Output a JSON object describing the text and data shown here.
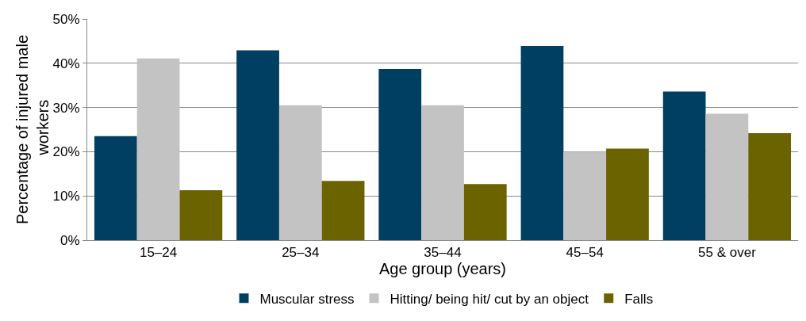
{
  "chart_data": {
    "type": "bar",
    "xlabel": "Age group (years)",
    "ylabel": "Percentage of injured male workers",
    "categories": [
      "15–24",
      "25–34",
      "35–44",
      "45–54",
      "55 & over"
    ],
    "series": [
      {
        "name": "Muscular stress",
        "color": "#003f62",
        "values": [
          23.5,
          42.9,
          38.7,
          43.9,
          33.6
        ]
      },
      {
        "name": "Hitting/ being hit/ cut by an object",
        "color": "#c3c3c3",
        "values": [
          41.1,
          30.5,
          30.5,
          20.0,
          28.6
        ]
      },
      {
        "name": "Falls",
        "color": "#6b6200",
        "values": [
          11.3,
          13.4,
          12.7,
          20.7,
          24.2
        ]
      }
    ],
    "ylim": [
      0,
      50
    ],
    "yticks": [
      {
        "value": 0,
        "label": "0%"
      },
      {
        "value": 10,
        "label": "10%"
      },
      {
        "value": 20,
        "label": "20%"
      },
      {
        "value": 30,
        "label": "30%"
      },
      {
        "value": 40,
        "label": "40%"
      },
      {
        "value": 50,
        "label": "50%"
      }
    ],
    "grid": "y",
    "legend": "bottom"
  }
}
